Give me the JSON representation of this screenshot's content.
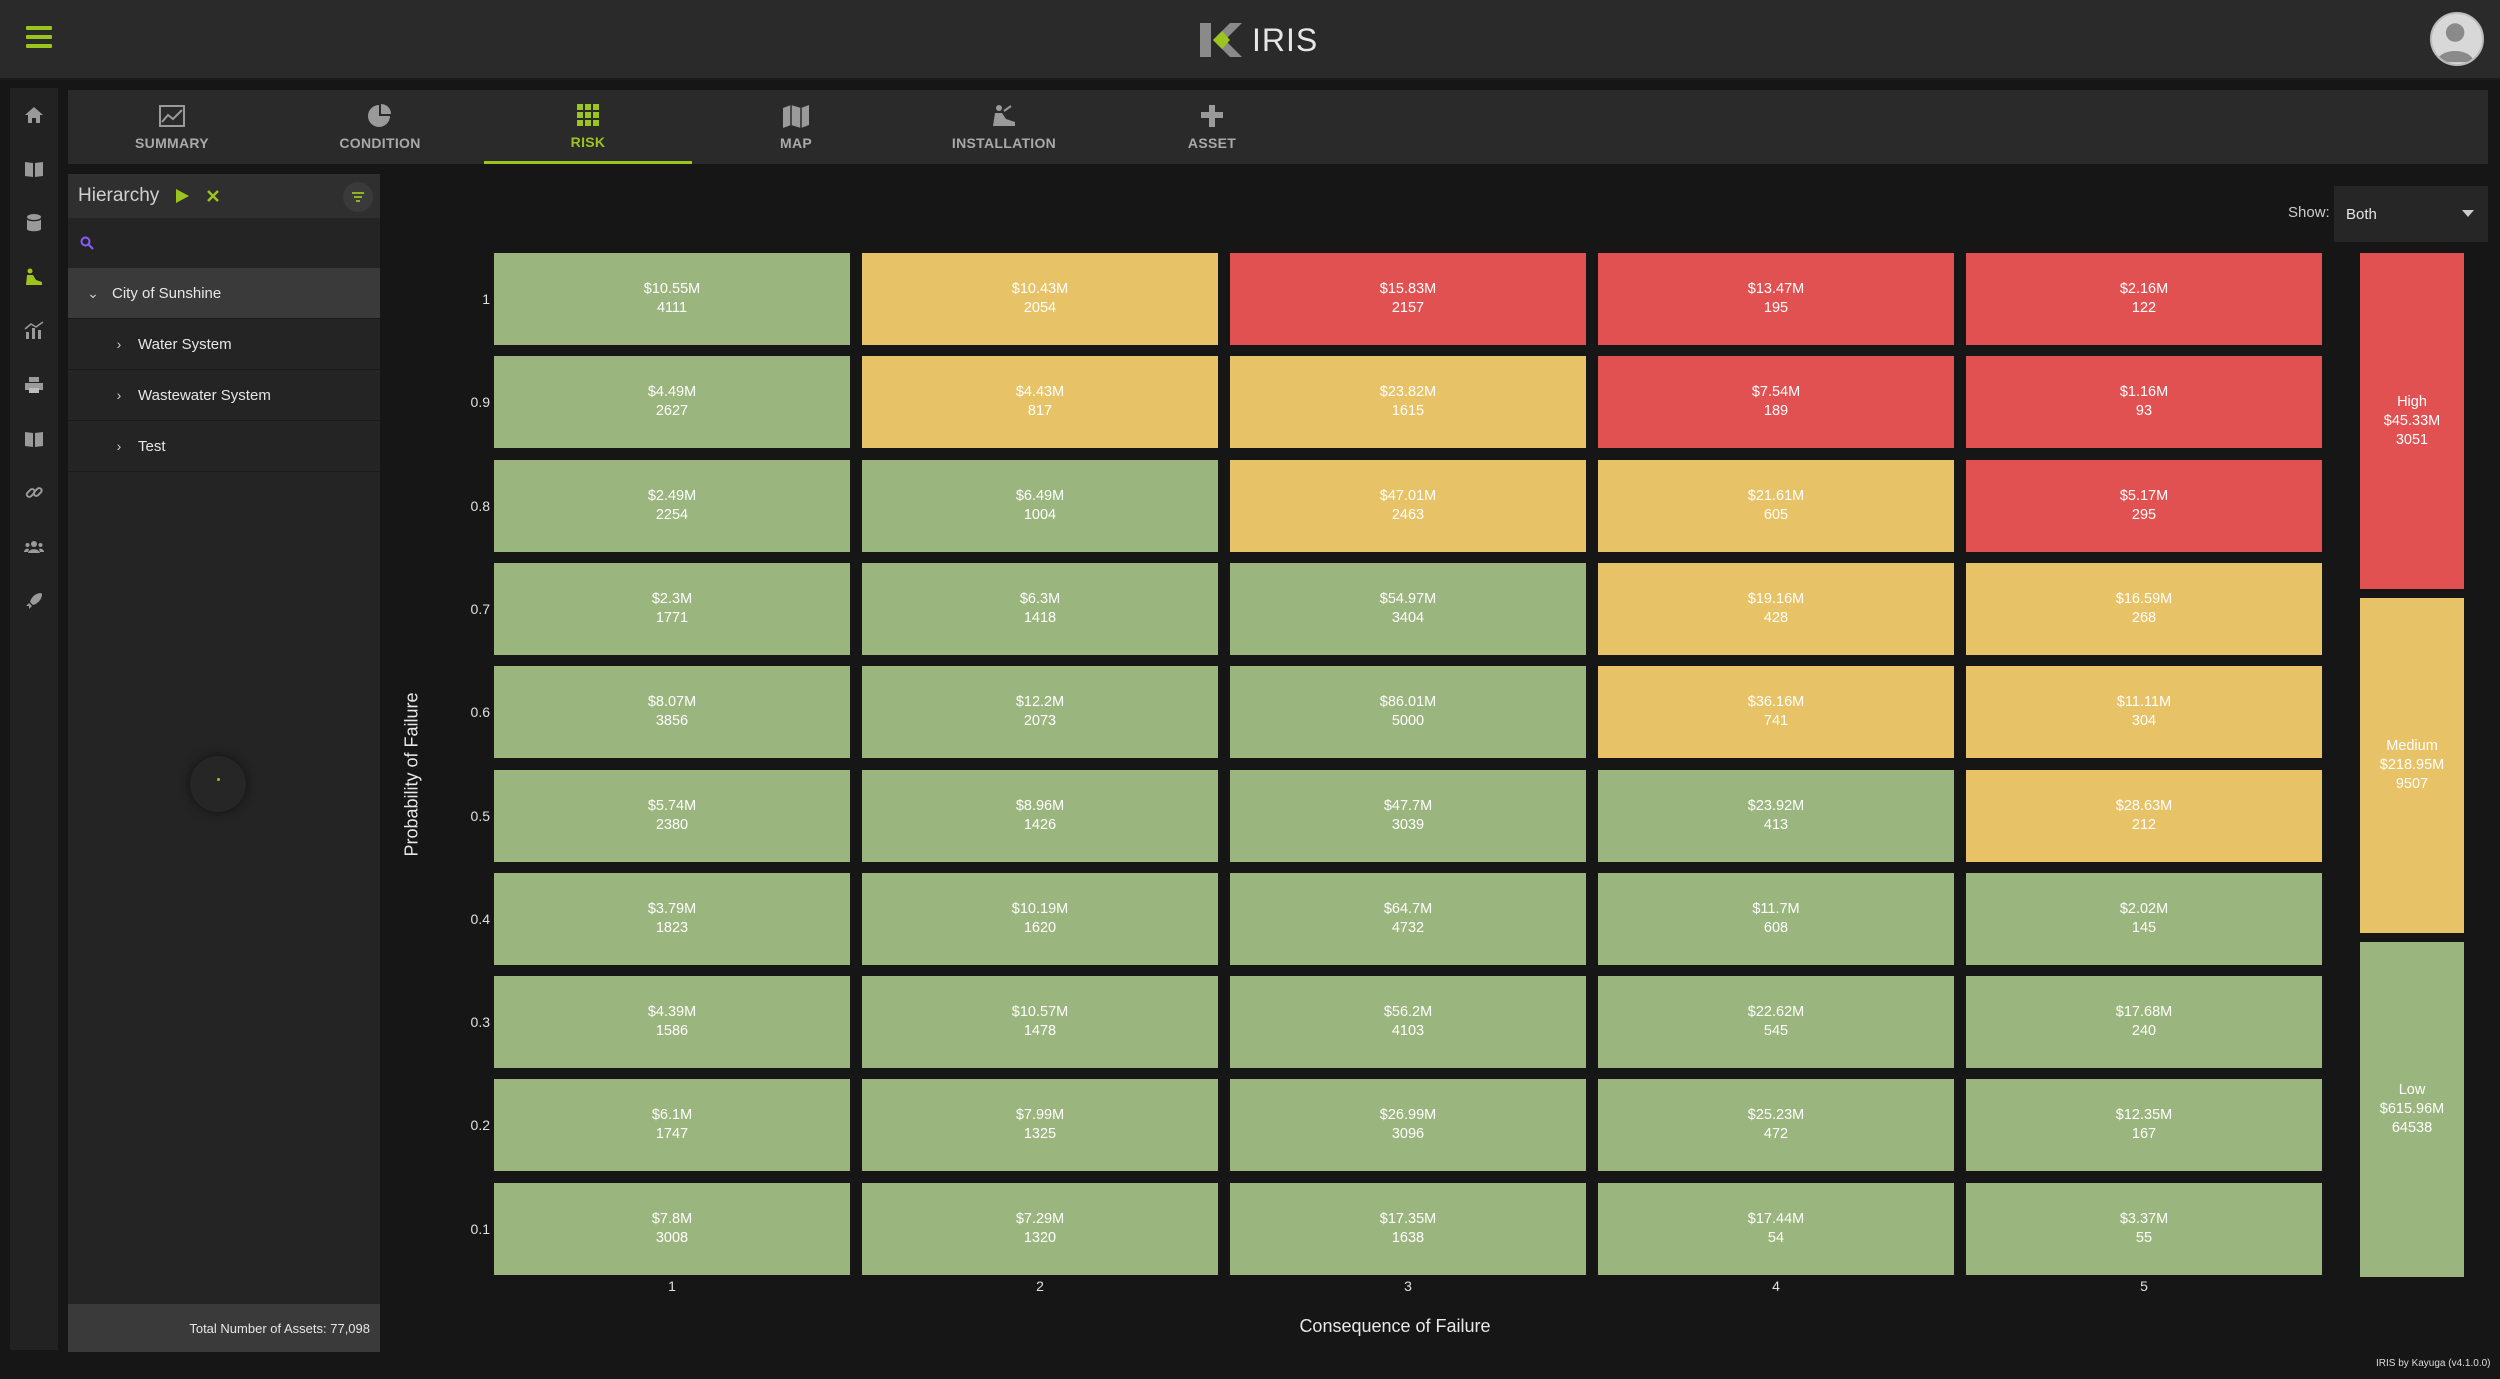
{
  "app": {
    "title": "IRIS",
    "version": "IRIS by Kayuga (v4.1.0.0)"
  },
  "rail": [
    "home-icon",
    "book-icon",
    "database-icon",
    "installation-icon",
    "chart-icon",
    "printer-icon",
    "book-icon",
    "link-icon",
    "users-icon",
    "rocket-icon"
  ],
  "tabs": [
    {
      "label": "SUMMARY",
      "icon": "line-chart-icon"
    },
    {
      "label": "CONDITION",
      "icon": "pie-chart-icon"
    },
    {
      "label": "RISK",
      "icon": "grid-icon",
      "active": true
    },
    {
      "label": "MAP",
      "icon": "map-icon"
    },
    {
      "label": "INSTALLATION",
      "icon": "digger-icon"
    },
    {
      "label": "ASSET",
      "icon": "pipe-icon"
    }
  ],
  "sidebar": {
    "title": "Hierarchy",
    "search_placeholder": "",
    "tree": [
      {
        "label": "City of Sunshine",
        "expanded": true
      },
      {
        "label": "Water System"
      },
      {
        "label": "Wastewater System"
      },
      {
        "label": "Test"
      }
    ],
    "total": "Total Number of Assets: 77,098"
  },
  "show": {
    "label": "Show:",
    "value": "Both"
  },
  "chart_data": {
    "type": "heatmap",
    "xlabel": "Consequence of Failure",
    "ylabel": "Probability of Failure",
    "x": [
      "1",
      "2",
      "3",
      "4",
      "5"
    ],
    "y": [
      "1",
      "0.9",
      "0.8",
      "0.7",
      "0.6",
      "0.5",
      "0.4",
      "0.3",
      "0.2",
      "0.1"
    ],
    "colors": {
      "low": "#9bb57e",
      "medium": "#e8c266",
      "high": "#e25151"
    },
    "rows": [
      [
        {
          "v": "$10.55M",
          "n": "4111",
          "r": "low"
        },
        {
          "v": "$10.43M",
          "n": "2054",
          "r": "medium"
        },
        {
          "v": "$15.83M",
          "n": "2157",
          "r": "high"
        },
        {
          "v": "$13.47M",
          "n": "195",
          "r": "high"
        },
        {
          "v": "$2.16M",
          "n": "122",
          "r": "high"
        }
      ],
      [
        {
          "v": "$4.49M",
          "n": "2627",
          "r": "low"
        },
        {
          "v": "$4.43M",
          "n": "817",
          "r": "medium"
        },
        {
          "v": "$23.82M",
          "n": "1615",
          "r": "medium"
        },
        {
          "v": "$7.54M",
          "n": "189",
          "r": "high"
        },
        {
          "v": "$1.16M",
          "n": "93",
          "r": "high"
        }
      ],
      [
        {
          "v": "$2.49M",
          "n": "2254",
          "r": "low"
        },
        {
          "v": "$6.49M",
          "n": "1004",
          "r": "low"
        },
        {
          "v": "$47.01M",
          "n": "2463",
          "r": "medium"
        },
        {
          "v": "$21.61M",
          "n": "605",
          "r": "medium"
        },
        {
          "v": "$5.17M",
          "n": "295",
          "r": "high"
        }
      ],
      [
        {
          "v": "$2.3M",
          "n": "1771",
          "r": "low"
        },
        {
          "v": "$6.3M",
          "n": "1418",
          "r": "low"
        },
        {
          "v": "$54.97M",
          "n": "3404",
          "r": "low"
        },
        {
          "v": "$19.16M",
          "n": "428",
          "r": "medium"
        },
        {
          "v": "$16.59M",
          "n": "268",
          "r": "medium"
        }
      ],
      [
        {
          "v": "$8.07M",
          "n": "3856",
          "r": "low"
        },
        {
          "v": "$12.2M",
          "n": "2073",
          "r": "low"
        },
        {
          "v": "$86.01M",
          "n": "5000",
          "r": "low"
        },
        {
          "v": "$36.16M",
          "n": "741",
          "r": "medium"
        },
        {
          "v": "$11.11M",
          "n": "304",
          "r": "medium"
        }
      ],
      [
        {
          "v": "$5.74M",
          "n": "2380",
          "r": "low"
        },
        {
          "v": "$8.96M",
          "n": "1426",
          "r": "low"
        },
        {
          "v": "$47.7M",
          "n": "3039",
          "r": "low"
        },
        {
          "v": "$23.92M",
          "n": "413",
          "r": "low"
        },
        {
          "v": "$28.63M",
          "n": "212",
          "r": "medium"
        }
      ],
      [
        {
          "v": "$3.79M",
          "n": "1823",
          "r": "low"
        },
        {
          "v": "$10.19M",
          "n": "1620",
          "r": "low"
        },
        {
          "v": "$64.7M",
          "n": "4732",
          "r": "low"
        },
        {
          "v": "$11.7M",
          "n": "608",
          "r": "low"
        },
        {
          "v": "$2.02M",
          "n": "145",
          "r": "low"
        }
      ],
      [
        {
          "v": "$4.39M",
          "n": "1586",
          "r": "low"
        },
        {
          "v": "$10.57M",
          "n": "1478",
          "r": "low"
        },
        {
          "v": "$56.2M",
          "n": "4103",
          "r": "low"
        },
        {
          "v": "$22.62M",
          "n": "545",
          "r": "low"
        },
        {
          "v": "$17.68M",
          "n": "240",
          "r": "low"
        }
      ],
      [
        {
          "v": "$6.1M",
          "n": "1747",
          "r": "low"
        },
        {
          "v": "$7.99M",
          "n": "1325",
          "r": "low"
        },
        {
          "v": "$26.99M",
          "n": "3096",
          "r": "low"
        },
        {
          "v": "$25.23M",
          "n": "472",
          "r": "low"
        },
        {
          "v": "$12.35M",
          "n": "167",
          "r": "low"
        }
      ],
      [
        {
          "v": "$7.8M",
          "n": "3008",
          "r": "low"
        },
        {
          "v": "$7.29M",
          "n": "1320",
          "r": "low"
        },
        {
          "v": "$17.35M",
          "n": "1638",
          "r": "low"
        },
        {
          "v": "$17.44M",
          "n": "54",
          "r": "low"
        },
        {
          "v": "$3.37M",
          "n": "55",
          "r": "low"
        }
      ]
    ],
    "summary": [
      {
        "label": "High",
        "value": "$45.33M",
        "count": "3051",
        "r": "high"
      },
      {
        "label": "Medium",
        "value": "$218.95M",
        "count": "9507",
        "r": "medium"
      },
      {
        "label": "Low",
        "value": "$615.96M",
        "count": "64538",
        "r": "low"
      }
    ]
  }
}
